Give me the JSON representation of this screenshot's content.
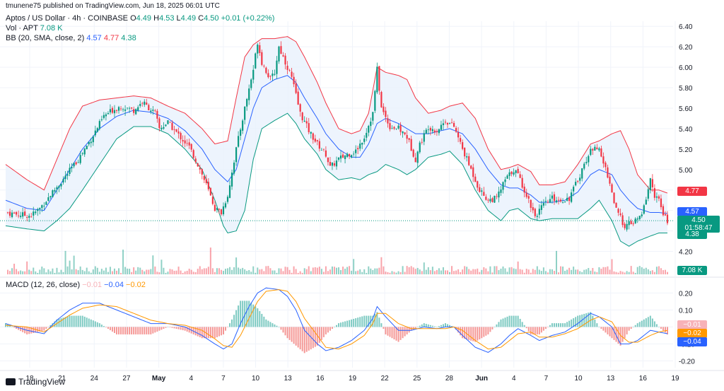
{
  "publisher": "tmunene75 published on TradingView.com, Jun 18, 2025 06:01 UTC",
  "legend": {
    "symbol": "Aptos / US Dollar · 4h · COINBASE",
    "o_label": "O",
    "o": "4.49",
    "h_label": "H",
    "h": "4.53",
    "l_label": "L",
    "l": "4.49",
    "c_label": "C",
    "c": "4.50",
    "change": "+0.01 (+0.22%)",
    "vol_label": "Vol · APT",
    "vol": "7.08 K",
    "bb_label": "BB (20, SMA, close, 2)",
    "bb_mid": "4.57",
    "bb_up": "4.77",
    "bb_low": "4.38",
    "macd_label": "MACD (12, 26, close)",
    "macd_hist": "−0.01",
    "macd_line": "−0.04",
    "macd_signal": "−0.02"
  },
  "price_tags": {
    "upper": "4.77",
    "mid": "4.57",
    "last": "4.50",
    "countdown": "01:58:47",
    "lower": "4.38",
    "volume": "7.08 K",
    "macd_hist": "−0.01",
    "macd_signal": "−0.02",
    "macd_line": "−0.04"
  },
  "footer": {
    "brand": "TradingView"
  },
  "colors": {
    "up": "#089981",
    "down": "#f23645",
    "bb_mid": "#2962ff",
    "bb_up": "#f23645",
    "bb_low": "#089981",
    "bb_fill": "#e8f1fd",
    "macd": "#2962ff",
    "signal": "#ff9800"
  },
  "chart_data": {
    "type": "candlestick",
    "price_axis": {
      "ticks": [
        "6.40",
        "6.20",
        "6.00",
        "5.80",
        "5.60",
        "5.40",
        "5.20",
        "5.00",
        "4.80",
        "4.60",
        "4.40",
        "4.20"
      ],
      "ylim": [
        4.1,
        6.45
      ]
    },
    "macd_axis": {
      "ticks": [
        "0.20",
        "0.10",
        "0.00",
        "-0.10",
        "-0.20"
      ],
      "ylim": [
        -0.24,
        0.26
      ]
    },
    "x_ticks": [
      "18",
      "21",
      "24",
      "27",
      "May",
      "4",
      "7",
      "10",
      "13",
      "16",
      "19",
      "22",
      "25",
      "28",
      "Jun",
      "4",
      "7",
      "10",
      "13",
      "16",
      "19"
    ],
    "close_path": [
      [
        0,
        4.58
      ],
      [
        6,
        4.56
      ],
      [
        12,
        4.55
      ],
      [
        16,
        4.62
      ],
      [
        22,
        4.78
      ],
      [
        28,
        4.93
      ],
      [
        34,
        5.1
      ],
      [
        40,
        5.3
      ],
      [
        46,
        5.52
      ],
      [
        50,
        5.58
      ],
      [
        54,
        5.62
      ],
      [
        60,
        5.58
      ],
      [
        64,
        5.66
      ],
      [
        70,
        5.55
      ],
      [
        72,
        5.4
      ],
      [
        76,
        5.46
      ],
      [
        80,
        5.36
      ],
      [
        86,
        5.22
      ],
      [
        90,
        5.05
      ],
      [
        94,
        4.85
      ],
      [
        98,
        4.62
      ],
      [
        101,
        4.58
      ],
      [
        104,
        4.75
      ],
      [
        108,
        5.2
      ],
      [
        112,
        5.6
      ],
      [
        116,
        5.98
      ],
      [
        118,
        6.25
      ],
      [
        120,
        6.05
      ],
      [
        124,
        5.88
      ],
      [
        126,
        5.95
      ],
      [
        128,
        6.2
      ],
      [
        130,
        6.1
      ],
      [
        134,
        5.9
      ],
      [
        138,
        5.55
      ],
      [
        142,
        5.38
      ],
      [
        146,
        5.25
      ],
      [
        150,
        5.15
      ],
      [
        152,
        5.02
      ],
      [
        156,
        5.1
      ],
      [
        160,
        5.15
      ],
      [
        164,
        5.18
      ],
      [
        168,
        5.32
      ],
      [
        172,
        5.55
      ],
      [
        174,
        5.98
      ],
      [
        176,
        5.6
      ],
      [
        180,
        5.42
      ],
      [
        184,
        5.4
      ],
      [
        188,
        5.32
      ],
      [
        192,
        5.1
      ],
      [
        194,
        5.25
      ],
      [
        198,
        5.42
      ],
      [
        202,
        5.38
      ],
      [
        206,
        5.48
      ],
      [
        210,
        5.42
      ],
      [
        214,
        5.2
      ],
      [
        218,
        5.0
      ],
      [
        222,
        4.8
      ],
      [
        226,
        4.7
      ],
      [
        230,
        4.72
      ],
      [
        234,
        4.9
      ],
      [
        238,
        5.0
      ],
      [
        240,
        4.95
      ],
      [
        244,
        4.75
      ],
      [
        248,
        4.55
      ],
      [
        252,
        4.65
      ],
      [
        256,
        4.72
      ],
      [
        260,
        4.7
      ],
      [
        264,
        4.72
      ],
      [
        268,
        4.9
      ],
      [
        272,
        5.1
      ],
      [
        276,
        5.25
      ],
      [
        278,
        5.18
      ],
      [
        282,
        4.95
      ],
      [
        286,
        4.6
      ],
      [
        290,
        4.45
      ],
      [
        294,
        4.48
      ],
      [
        298,
        4.55
      ],
      [
        302,
        4.9
      ],
      [
        304,
        4.75
      ],
      [
        306,
        4.7
      ],
      [
        308,
        4.55
      ],
      [
        310,
        4.5
      ]
    ],
    "bb_upper_path": [
      [
        0,
        5.05
      ],
      [
        10,
        4.9
      ],
      [
        18,
        4.8
      ],
      [
        24,
        5.1
      ],
      [
        30,
        5.4
      ],
      [
        36,
        5.62
      ],
      [
        44,
        5.68
      ],
      [
        52,
        5.7
      ],
      [
        60,
        5.72
      ],
      [
        68,
        5.7
      ],
      [
        76,
        5.62
      ],
      [
        84,
        5.55
      ],
      [
        92,
        5.4
      ],
      [
        98,
        5.25
      ],
      [
        104,
        5.28
      ],
      [
        108,
        5.7
      ],
      [
        112,
        6.1
      ],
      [
        116,
        6.22
      ],
      [
        120,
        6.28
      ],
      [
        126,
        6.28
      ],
      [
        132,
        6.3
      ],
      [
        136,
        6.25
      ],
      [
        140,
        6.1
      ],
      [
        146,
        5.85
      ],
      [
        150,
        5.65
      ],
      [
        156,
        5.4
      ],
      [
        162,
        5.35
      ],
      [
        166,
        5.38
      ],
      [
        170,
        5.55
      ],
      [
        174,
        6.0
      ],
      [
        178,
        5.95
      ],
      [
        184,
        5.92
      ],
      [
        188,
        5.88
      ],
      [
        192,
        5.7
      ],
      [
        198,
        5.55
      ],
      [
        204,
        5.58
      ],
      [
        208,
        5.62
      ],
      [
        214,
        5.65
      ],
      [
        220,
        5.5
      ],
      [
        226,
        5.2
      ],
      [
        232,
        5.0
      ],
      [
        236,
        5.02
      ],
      [
        240,
        5.05
      ],
      [
        246,
        4.98
      ],
      [
        250,
        4.85
      ],
      [
        256,
        4.85
      ],
      [
        262,
        4.88
      ],
      [
        268,
        5.05
      ],
      [
        274,
        5.25
      ],
      [
        278,
        5.28
      ],
      [
        284,
        5.35
      ],
      [
        288,
        5.38
      ],
      [
        292,
        5.2
      ],
      [
        296,
        4.95
      ],
      [
        302,
        4.8
      ],
      [
        306,
        4.8
      ],
      [
        310,
        4.77
      ]
    ],
    "bb_mid_path": [
      [
        0,
        4.7
      ],
      [
        10,
        4.62
      ],
      [
        18,
        4.6
      ],
      [
        24,
        4.8
      ],
      [
        30,
        5.0
      ],
      [
        36,
        5.2
      ],
      [
        44,
        5.4
      ],
      [
        52,
        5.52
      ],
      [
        60,
        5.58
      ],
      [
        68,
        5.56
      ],
      [
        76,
        5.5
      ],
      [
        84,
        5.38
      ],
      [
        92,
        5.2
      ],
      [
        98,
        5.0
      ],
      [
        104,
        4.88
      ],
      [
        108,
        5.0
      ],
      [
        112,
        5.3
      ],
      [
        116,
        5.6
      ],
      [
        120,
        5.8
      ],
      [
        126,
        5.88
      ],
      [
        132,
        5.92
      ],
      [
        136,
        5.85
      ],
      [
        140,
        5.7
      ],
      [
        146,
        5.5
      ],
      [
        150,
        5.35
      ],
      [
        156,
        5.2
      ],
      [
        162,
        5.12
      ],
      [
        166,
        5.12
      ],
      [
        170,
        5.25
      ],
      [
        174,
        5.45
      ],
      [
        178,
        5.5
      ],
      [
        184,
        5.45
      ],
      [
        188,
        5.4
      ],
      [
        192,
        5.35
      ],
      [
        198,
        5.35
      ],
      [
        204,
        5.38
      ],
      [
        208,
        5.4
      ],
      [
        214,
        5.35
      ],
      [
        220,
        5.2
      ],
      [
        226,
        5.0
      ],
      [
        232,
        4.85
      ],
      [
        236,
        4.82
      ],
      [
        240,
        4.82
      ],
      [
        246,
        4.75
      ],
      [
        250,
        4.68
      ],
      [
        256,
        4.68
      ],
      [
        262,
        4.7
      ],
      [
        268,
        4.78
      ],
      [
        274,
        4.95
      ],
      [
        278,
        5.0
      ],
      [
        284,
        4.95
      ],
      [
        288,
        4.8
      ],
      [
        292,
        4.7
      ],
      [
        296,
        4.62
      ],
      [
        302,
        4.58
      ],
      [
        306,
        4.58
      ],
      [
        310,
        4.57
      ]
    ],
    "bb_lower_path": [
      [
        0,
        4.45
      ],
      [
        10,
        4.42
      ],
      [
        18,
        4.4
      ],
      [
        24,
        4.5
      ],
      [
        30,
        4.62
      ],
      [
        36,
        4.8
      ],
      [
        44,
        5.05
      ],
      [
        52,
        5.3
      ],
      [
        60,
        5.42
      ],
      [
        68,
        5.42
      ],
      [
        76,
        5.35
      ],
      [
        84,
        5.2
      ],
      [
        92,
        5.0
      ],
      [
        98,
        4.7
      ],
      [
        102,
        4.45
      ],
      [
        104,
        4.38
      ],
      [
        108,
        4.4
      ],
      [
        112,
        4.6
      ],
      [
        116,
        5.1
      ],
      [
        120,
        5.4
      ],
      [
        126,
        5.48
      ],
      [
        132,
        5.55
      ],
      [
        136,
        5.45
      ],
      [
        140,
        5.3
      ],
      [
        146,
        5.15
      ],
      [
        150,
        5.0
      ],
      [
        156,
        4.9
      ],
      [
        162,
        4.92
      ],
      [
        166,
        4.9
      ],
      [
        170,
        4.95
      ],
      [
        174,
        4.98
      ],
      [
        178,
        5.05
      ],
      [
        184,
        5.0
      ],
      [
        188,
        4.95
      ],
      [
        192,
        5.0
      ],
      [
        198,
        5.12
      ],
      [
        204,
        5.15
      ],
      [
        208,
        5.18
      ],
      [
        214,
        5.05
      ],
      [
        220,
        4.8
      ],
      [
        226,
        4.6
      ],
      [
        232,
        4.5
      ],
      [
        236,
        4.6
      ],
      [
        240,
        4.62
      ],
      [
        246,
        4.52
      ],
      [
        250,
        4.5
      ],
      [
        256,
        4.52
      ],
      [
        262,
        4.52
      ],
      [
        268,
        4.52
      ],
      [
        274,
        4.62
      ],
      [
        278,
        4.7
      ],
      [
        284,
        4.5
      ],
      [
        288,
        4.3
      ],
      [
        292,
        4.25
      ],
      [
        296,
        4.3
      ],
      [
        302,
        4.35
      ],
      [
        306,
        4.38
      ],
      [
        310,
        4.38
      ]
    ],
    "macd_path": [
      [
        0,
        0.02
      ],
      [
        10,
        -0.02
      ],
      [
        18,
        -0.04
      ],
      [
        24,
        0.04
      ],
      [
        30,
        0.1
      ],
      [
        36,
        0.14
      ],
      [
        44,
        0.14
      ],
      [
        52,
        0.1
      ],
      [
        60,
        0.06
      ],
      [
        68,
        0.02
      ],
      [
        76,
        0.02
      ],
      [
        84,
        0.0
      ],
      [
        92,
        -0.05
      ],
      [
        98,
        -0.1
      ],
      [
        102,
        -0.13
      ],
      [
        106,
        -0.1
      ],
      [
        110,
        0.02
      ],
      [
        114,
        0.12
      ],
      [
        118,
        0.2
      ],
      [
        122,
        0.23
      ],
      [
        128,
        0.22
      ],
      [
        132,
        0.18
      ],
      [
        136,
        0.1
      ],
      [
        140,
        -0.02
      ],
      [
        146,
        -0.1
      ],
      [
        150,
        -0.14
      ],
      [
        156,
        -0.12
      ],
      [
        162,
        -0.08
      ],
      [
        168,
        -0.02
      ],
      [
        172,
        0.05
      ],
      [
        174,
        0.12
      ],
      [
        178,
        0.06
      ],
      [
        184,
        -0.02
      ],
      [
        190,
        -0.02
      ],
      [
        196,
        0.0
      ],
      [
        202,
        -0.01
      ],
      [
        206,
        0.0
      ],
      [
        210,
        0.0
      ],
      [
        214,
        -0.05
      ],
      [
        220,
        -0.12
      ],
      [
        226,
        -0.15
      ],
      [
        232,
        -0.1
      ],
      [
        236,
        -0.05
      ],
      [
        240,
        -0.01
      ],
      [
        246,
        -0.05
      ],
      [
        250,
        -0.08
      ],
      [
        256,
        -0.05
      ],
      [
        262,
        -0.03
      ],
      [
        268,
        0.02
      ],
      [
        274,
        0.08
      ],
      [
        278,
        0.06
      ],
      [
        284,
        0.0
      ],
      [
        288,
        -0.1
      ],
      [
        292,
        -0.1
      ],
      [
        296,
        -0.08
      ],
      [
        302,
        -0.02
      ],
      [
        306,
        -0.03
      ],
      [
        310,
        -0.04
      ]
    ],
    "signal_path": [
      [
        0,
        0.01
      ],
      [
        10,
        0.0
      ],
      [
        18,
        -0.03
      ],
      [
        24,
        0.02
      ],
      [
        30,
        0.07
      ],
      [
        36,
        0.11
      ],
      [
        44,
        0.13
      ],
      [
        52,
        0.12
      ],
      [
        60,
        0.08
      ],
      [
        68,
        0.04
      ],
      [
        76,
        0.02
      ],
      [
        84,
        0.01
      ],
      [
        92,
        -0.02
      ],
      [
        98,
        -0.07
      ],
      [
        102,
        -0.11
      ],
      [
        106,
        -0.12
      ],
      [
        110,
        -0.05
      ],
      [
        114,
        0.05
      ],
      [
        118,
        0.15
      ],
      [
        122,
        0.21
      ],
      [
        128,
        0.22
      ],
      [
        132,
        0.21
      ],
      [
        136,
        0.15
      ],
      [
        140,
        0.05
      ],
      [
        146,
        -0.05
      ],
      [
        150,
        -0.12
      ],
      [
        156,
        -0.13
      ],
      [
        162,
        -0.1
      ],
      [
        168,
        -0.05
      ],
      [
        172,
        0.02
      ],
      [
        174,
        0.08
      ],
      [
        178,
        0.08
      ],
      [
        184,
        0.02
      ],
      [
        190,
        -0.01
      ],
      [
        196,
        -0.01
      ],
      [
        202,
        -0.01
      ],
      [
        206,
        -0.01
      ],
      [
        210,
        0.0
      ],
      [
        214,
        -0.02
      ],
      [
        220,
        -0.08
      ],
      [
        226,
        -0.13
      ],
      [
        232,
        -0.12
      ],
      [
        236,
        -0.08
      ],
      [
        240,
        -0.04
      ],
      [
        246,
        -0.03
      ],
      [
        250,
        -0.06
      ],
      [
        256,
        -0.06
      ],
      [
        262,
        -0.04
      ],
      [
        268,
        -0.01
      ],
      [
        274,
        0.04
      ],
      [
        278,
        0.06
      ],
      [
        284,
        0.03
      ],
      [
        288,
        -0.05
      ],
      [
        292,
        -0.09
      ],
      [
        296,
        -0.09
      ],
      [
        302,
        -0.05
      ],
      [
        306,
        -0.03
      ],
      [
        310,
        -0.02
      ]
    ]
  }
}
